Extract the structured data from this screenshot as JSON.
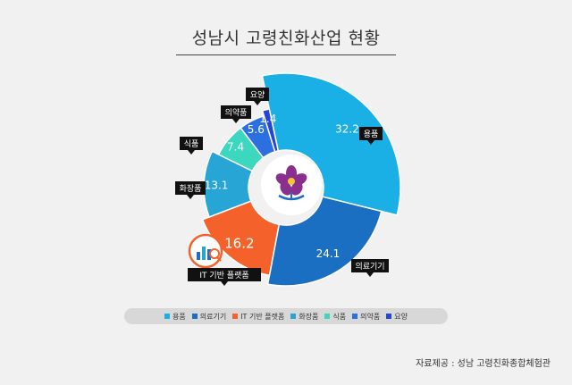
{
  "title": "성남시 고령친화산업 현황",
  "source": "자료제공 : 성남 고령친화종합체험관",
  "chart_data": {
    "type": "pie",
    "donut": true,
    "series": [
      {
        "name": "용품",
        "value": 32.2,
        "color": "#1ab0e6"
      },
      {
        "name": "의료기기",
        "value": 24.1,
        "color": "#1a6fc2"
      },
      {
        "name": "IT 기반 플랫폼",
        "value": 16.2,
        "color": "#f4612a"
      },
      {
        "name": "화장품",
        "value": 13.1,
        "color": "#27a6d6"
      },
      {
        "name": "식품",
        "value": 7.4,
        "color": "#3bd7bf"
      },
      {
        "name": "의약품",
        "value": 5.6,
        "color": "#2c6fe0"
      },
      {
        "name": "요양",
        "value": 1.4,
        "color": "#2346d8"
      }
    ]
  },
  "legend": [
    {
      "label": "용품",
      "color": "#1ab0e6"
    },
    {
      "label": "의료기기",
      "color": "#1a6fc2"
    },
    {
      "label": "IT 기반 플랫폼",
      "color": "#f4612a"
    },
    {
      "label": "화장품",
      "color": "#27a6d6"
    },
    {
      "label": "식품",
      "color": "#3bd7bf"
    },
    {
      "label": "의약품",
      "color": "#2c6fe0"
    },
    {
      "label": "요양",
      "color": "#2346d8"
    }
  ],
  "icons": {
    "center": "magnolia-logo-icon",
    "it_platform": "chart-magnifier-icon"
  }
}
